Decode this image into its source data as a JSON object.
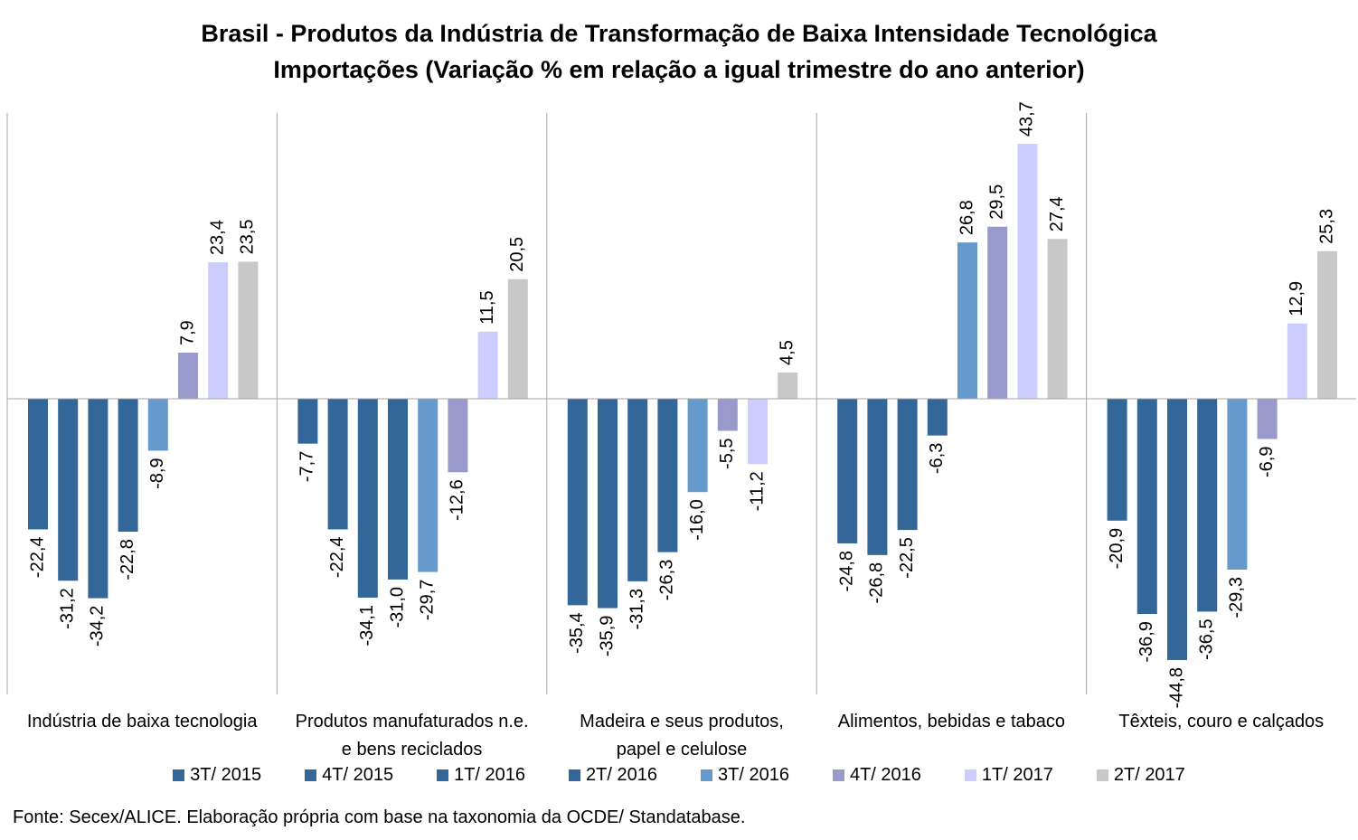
{
  "chart_data": {
    "type": "bar",
    "title": "Brasil - Produtos da Indústria de Transformação de Baixa Intensidade Tecnológica",
    "subtitle": "Importações (Variação % em relação a igual trimestre do ano anterior)",
    "categories": [
      [
        "Indústria de baixa tecnologia"
      ],
      [
        "Produtos manufaturados n.e.",
        "e bens reciclados"
      ],
      [
        "Madeira e seus produtos,",
        "papel e celulose"
      ],
      [
        "Alimentos, bebidas e tabaco"
      ],
      [
        "Têxteis, couro e calçados"
      ]
    ],
    "series": [
      {
        "name": "3T/ 2015",
        "color": "#336699",
        "values": [
          -22.4,
          -7.7,
          -35.4,
          -24.8,
          -20.9
        ]
      },
      {
        "name": "4T/ 2015",
        "color": "#336699",
        "values": [
          -31.2,
          -22.4,
          -35.9,
          -26.8,
          -36.9
        ]
      },
      {
        "name": "1T/ 2016",
        "color": "#336699",
        "values": [
          -34.2,
          -34.1,
          -31.3,
          -22.5,
          -44.8
        ]
      },
      {
        "name": "2T/ 2016",
        "color": "#336699",
        "values": [
          -22.8,
          -31.0,
          -26.3,
          -6.3,
          -36.5
        ]
      },
      {
        "name": "3T/ 2016",
        "color": "#6699cc",
        "values": [
          -8.9,
          -29.7,
          -16.0,
          26.8,
          -29.3
        ]
      },
      {
        "name": "4T/ 2016",
        "color": "#9999cc",
        "values": [
          7.9,
          -12.6,
          -5.5,
          29.5,
          -6.9
        ]
      },
      {
        "name": "1T/ 2017",
        "color": "#ccccff",
        "values": [
          23.4,
          11.5,
          -11.2,
          43.7,
          12.9
        ]
      },
      {
        "name": "2T/ 2017",
        "color": "#c8c8c8",
        "values": [
          23.5,
          20.5,
          4.5,
          27.4,
          25.3
        ]
      }
    ],
    "ylim": [
      -50,
      49
    ],
    "decimal_separator": ",",
    "grid": false,
    "legend_position": "bottom"
  },
  "source_note": "Fonte: Secex/ALICE. Elaboração própria com base na taxonomia da OCDE/ Standatabase."
}
